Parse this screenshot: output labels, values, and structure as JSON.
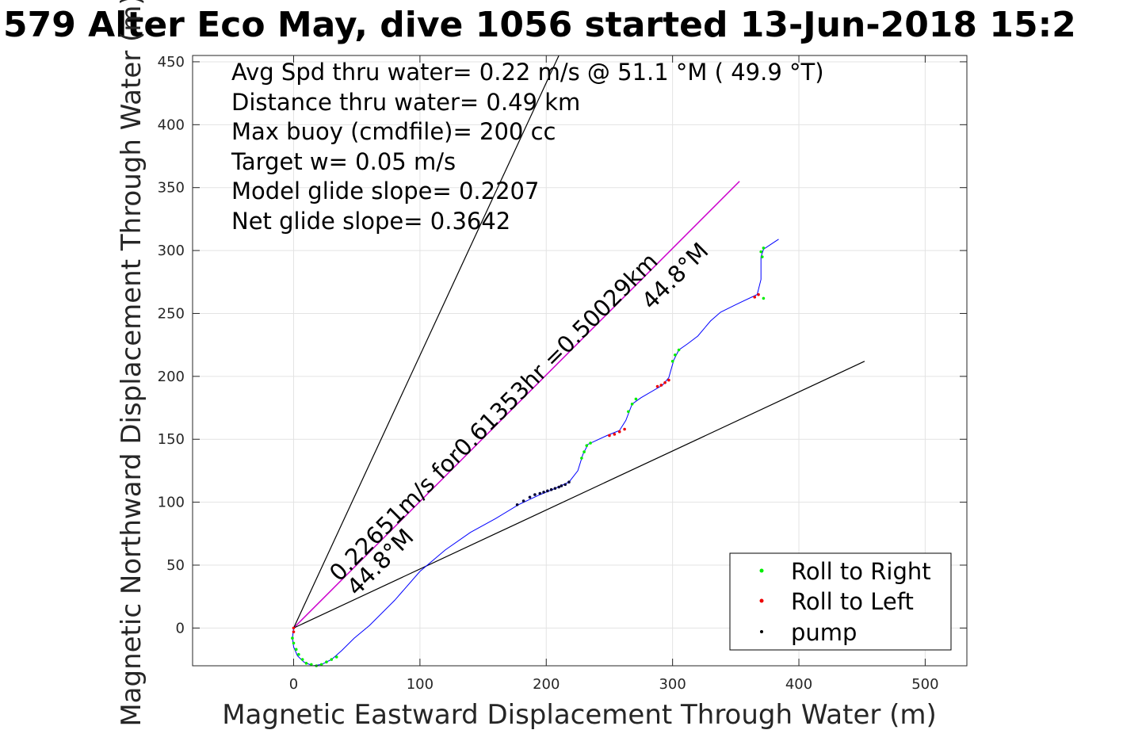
{
  "chart_data": {
    "type": "line",
    "title": "579 Alter Eco May, dive 1056 started 13-Jun-2018 15:2",
    "xlabel": "Magnetic Eastward Displacement Through Water (m)",
    "ylabel": "Magnetic Northward Displacement Through Water (m)",
    "xlim": [
      -80,
      533
    ],
    "ylim": [
      -30,
      455
    ],
    "xticks": [
      0,
      100,
      200,
      300,
      400,
      500
    ],
    "yticks": [
      0,
      50,
      100,
      150,
      200,
      250,
      300,
      350,
      400,
      450
    ],
    "grid": true,
    "stats": [
      "Avg Spd thru water=  0.22 m/s @  51.1 °M ( 49.9 °T)",
      "Distance thru water=  0.49 km",
      "Max buoy (cmdfile)= 200 cc",
      "Target w= 0.05 m/s",
      "Model glide slope= 0.2207",
      "Net glide slope= 0.3642"
    ],
    "annotations": {
      "velocity_text": "0.22651m/s for0.61353hr =0.50029km",
      "heading_near": "44.8°M",
      "heading_far": "44.8°M"
    },
    "legend": {
      "position": "bottom-right",
      "entries": [
        {
          "label": "Roll to Right",
          "color": "#00ee00"
        },
        {
          "label": "Roll to Left",
          "color": "#ee0000"
        },
        {
          "label": "pump",
          "color": "#000000"
        }
      ]
    },
    "colors": {
      "track": "#0000ff",
      "course": "#cc00cc",
      "cone": "#000000",
      "roll_right": "#00ee00",
      "roll_left": "#ee0000",
      "pump": "#000033"
    },
    "reference_lines": [
      {
        "name": "course-line",
        "x": [
          0,
          353
        ],
        "y": [
          0,
          355
        ]
      },
      {
        "name": "cone-line-left",
        "x": [
          0,
          210
        ],
        "y": [
          0,
          455
        ]
      },
      {
        "name": "cone-line-right",
        "x": [
          0,
          452
        ],
        "y": [
          0,
          212
        ]
      }
    ],
    "track": {
      "x": [
        0,
        -1,
        0,
        3,
        8,
        15,
        22,
        30,
        38,
        48,
        60,
        80,
        100,
        120,
        140,
        160,
        178,
        195,
        205,
        218,
        225,
        229,
        233,
        248,
        258,
        263,
        268,
        275,
        292,
        297,
        301,
        305,
        312,
        320,
        330,
        338,
        350,
        367,
        370,
        370,
        372,
        378,
        384
      ],
      "y": [
        0,
        -8,
        -15,
        -22,
        -27,
        -30,
        -29,
        -25,
        -18,
        -8,
        2,
        22,
        45,
        62,
        76,
        87,
        98,
        106,
        110,
        116,
        125,
        138,
        146,
        153,
        157,
        165,
        178,
        183,
        193,
        199,
        213,
        221,
        226,
        232,
        244,
        251,
        257,
        265,
        277,
        295,
        301,
        305,
        309
      ]
    },
    "roll_right_points": {
      "x": [
        -1,
        0,
        2,
        4,
        7,
        10,
        14,
        18,
        22,
        26,
        30,
        34,
        228,
        230,
        232,
        235,
        265,
        268,
        271,
        300,
        302,
        305,
        372,
        371,
        370,
        372
      ],
      "y": [
        -8,
        -12,
        -17,
        -21,
        -25,
        -28,
        -29,
        -30,
        -29,
        -27,
        -25,
        -23,
        135,
        140,
        145,
        147,
        172,
        178,
        182,
        212,
        217,
        221,
        262,
        295,
        299,
        302
      ]
    },
    "roll_left_points": {
      "x": [
        0,
        0,
        250,
        254,
        258,
        262,
        288,
        291,
        294,
        297,
        365,
        368
      ],
      "y": [
        0,
        -3,
        153,
        154,
        156,
        158,
        192,
        193,
        195,
        197,
        263,
        265
      ]
    },
    "pump_points": {
      "x": [
        177,
        182,
        187,
        191,
        195,
        198,
        201,
        204,
        207,
        210,
        212,
        215,
        218
      ],
      "y": [
        98,
        101,
        104,
        106,
        107,
        108,
        109,
        110,
        111,
        112,
        113,
        114,
        116
      ]
    }
  }
}
